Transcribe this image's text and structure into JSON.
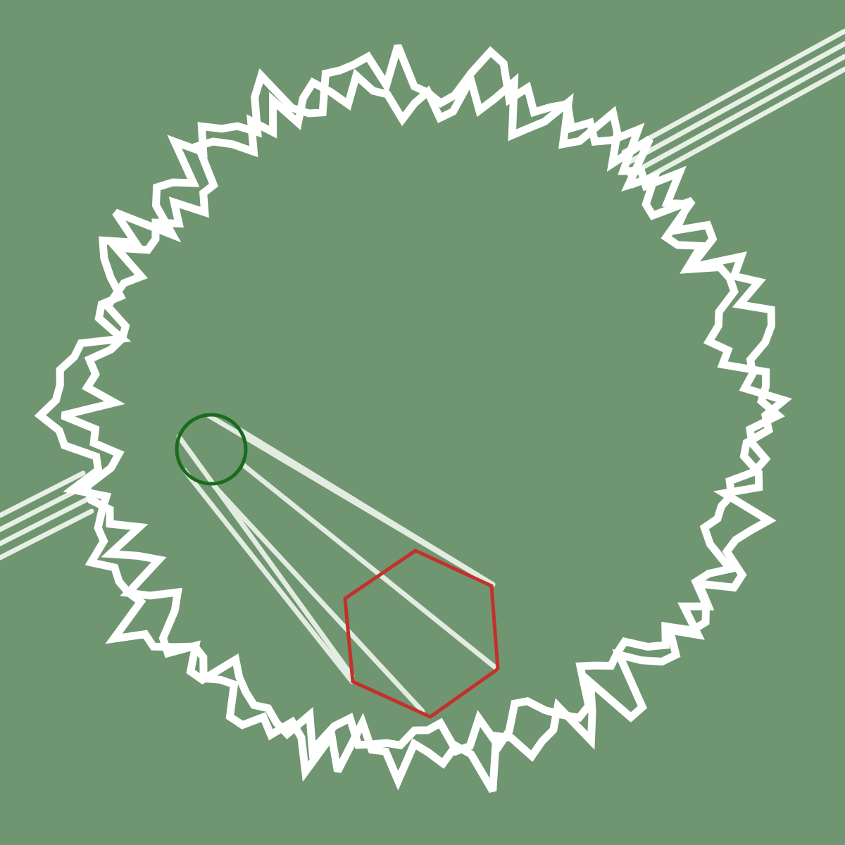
{
  "scene": {
    "background_color": "#6f9670",
    "wall_color": "#ffffff",
    "rail_color": "#e8f0e6",
    "beam_color": "#e2ece0",
    "emitter": {
      "icon": "ring-emitter-icon",
      "color": "#1b6b1f"
    },
    "target": {
      "icon": "hexagon-target-icon",
      "color": "#c4302b"
    }
  }
}
